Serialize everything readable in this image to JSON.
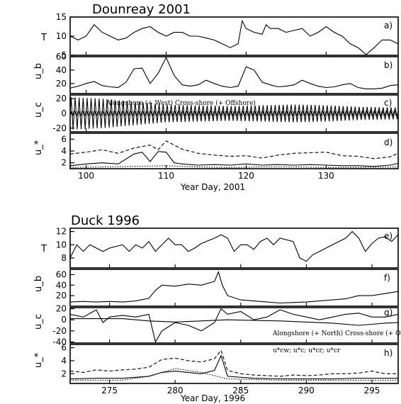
{
  "colors": {
    "ink": "#000000",
    "background": "#ffffff"
  },
  "chart_data": [
    {
      "type": "line",
      "title": "Dounreay 2001",
      "xlabel": "Year Day, 2001",
      "xlim": [
        98,
        139
      ],
      "xticks": [
        100,
        110,
        120,
        130
      ],
      "panels": [
        {
          "id": "a",
          "label": "a)",
          "ylabel": "T",
          "ylim": [
            5,
            15
          ],
          "yticks": [
            5,
            10,
            15
          ],
          "series": [
            {
              "style": "solid",
              "x": [
                98,
                99,
                100,
                101,
                102,
                103,
                104,
                105,
                106,
                107,
                108,
                109,
                110,
                111,
                112,
                113,
                114,
                115,
                116,
                117,
                118,
                119,
                119.5,
                120,
                121,
                122,
                122.5,
                123,
                124,
                125,
                126,
                127,
                128,
                129,
                130,
                131,
                132,
                133,
                134,
                135,
                136,
                137,
                138,
                139
              ],
              "values": [
                10,
                9,
                10,
                13,
                11,
                10,
                9,
                9.5,
                11,
                12,
                12.5,
                11,
                10,
                11,
                11,
                10,
                10,
                9.5,
                9,
                8,
                7,
                8,
                14,
                12,
                11,
                10.5,
                13,
                12,
                12,
                11,
                11.5,
                12,
                10,
                11,
                12.5,
                11,
                10,
                8,
                7,
                5,
                7,
                9,
                9,
                8
              ]
            }
          ]
        },
        {
          "id": "b",
          "label": "b)",
          "ylabel": "u_b",
          "ylim": [
            5,
            60
          ],
          "yticks": [
            20,
            40,
            60
          ],
          "series": [
            {
              "style": "solid",
              "x": [
                98,
                99,
                100,
                101,
                102,
                103,
                104,
                105,
                106,
                107,
                108,
                109,
                110,
                111,
                112,
                113,
                114,
                115,
                116,
                117,
                118,
                119,
                120,
                121,
                122,
                123,
                124,
                125,
                126,
                127,
                128,
                129,
                130,
                131,
                132,
                133,
                134,
                135,
                136,
                137,
                138,
                139
              ],
              "values": [
                13,
                16,
                20,
                23,
                17,
                15,
                14,
                22,
                42,
                43,
                20,
                35,
                60,
                32,
                18,
                16,
                18,
                25,
                20,
                16,
                14,
                16,
                45,
                40,
                22,
                18,
                15,
                16,
                18,
                25,
                20,
                16,
                14,
                15,
                18,
                20,
                14,
                12,
                12,
                13,
                17,
                18
              ]
            }
          ]
        },
        {
          "id": "c",
          "label": "c)",
          "ylabel": "u_c",
          "ylim": [
            -25,
            25
          ],
          "yticks": [
            -20,
            0,
            20
          ],
          "annotation": "Alongshore (+ West)    Cross-shore (+ Offshore)",
          "series": [
            {
              "name": "Alongshore (+ West)",
              "style": "oscillation",
              "x": [
                98,
                102,
                106,
                110,
                114,
                118,
                122,
                126,
                130,
                134,
                139
              ],
              "values": [
                22,
                20,
                16,
                12,
                11,
                10,
                11,
                12,
                11,
                9,
                8
              ]
            },
            {
              "name": "Cross-shore (+ Offshore)",
              "style": "oscillation",
              "x": [
                98,
                106,
                114,
                122,
                130,
                139
              ],
              "values": [
                4,
                4,
                4,
                4,
                4,
                4
              ]
            }
          ]
        },
        {
          "id": "d",
          "label": "d)",
          "ylabel": "u_*",
          "ylim": [
            1,
            7
          ],
          "yticks": [
            2,
            4,
            6
          ],
          "series": [
            {
              "style": "dashed",
              "x": [
                98,
                100,
                102,
                104,
                106,
                108,
                109,
                110,
                112,
                114,
                116,
                118,
                120,
                122,
                124,
                126,
                128,
                130,
                132,
                134,
                136,
                138,
                139
              ],
              "values": [
                3.5,
                3.8,
                4.2,
                3.6,
                4.5,
                5.0,
                4.2,
                5.7,
                4.3,
                3.6,
                3.3,
                3.1,
                3.2,
                2.8,
                3.3,
                3.6,
                3.7,
                3.8,
                3.2,
                3.1,
                2.7,
                3.0,
                3.6
              ]
            },
            {
              "style": "solid",
              "x": [
                98,
                100,
                102,
                104,
                106,
                107,
                108,
                109,
                110,
                111,
                112,
                114,
                116,
                118,
                120,
                122,
                124,
                126,
                128,
                130,
                132,
                134,
                136,
                138,
                139
              ],
              "values": [
                1.5,
                1.8,
                2.0,
                1.8,
                3.5,
                3.8,
                2.2,
                3.9,
                3.8,
                2.0,
                1.8,
                1.6,
                1.7,
                1.6,
                1.8,
                1.6,
                1.7,
                1.6,
                1.7,
                1.6,
                1.5,
                1.5,
                1.4,
                1.6,
                1.9
              ]
            },
            {
              "style": "dotted",
              "x": [
                98,
                102,
                106,
                110,
                114,
                118,
                122,
                126,
                130,
                134,
                139
              ],
              "values": [
                1.2,
                1.3,
                1.4,
                1.5,
                1.3,
                1.2,
                1.3,
                1.3,
                1.2,
                1.2,
                1.3
              ]
            }
          ]
        }
      ]
    },
    {
      "type": "line",
      "title": "Duck 1996",
      "xlabel": "Year Day, 1996",
      "xlim": [
        272,
        297
      ],
      "xticks": [
        275,
        280,
        285,
        290,
        295
      ],
      "panels": [
        {
          "id": "e",
          "label": "e)",
          "ylabel": "T",
          "ylim": [
            6.5,
            12.5
          ],
          "yticks": [
            8,
            10,
            12
          ],
          "series": [
            {
              "style": "solid",
              "x": [
                272,
                272.5,
                273,
                273.5,
                274,
                274.5,
                275,
                276,
                276.5,
                277,
                277.5,
                278,
                278.5,
                279,
                279.5,
                280,
                280.5,
                281,
                281.5,
                282,
                283,
                283.5,
                284,
                284.5,
                285,
                285.5,
                286,
                286.5,
                287,
                287.5,
                288,
                289,
                289.5,
                290,
                290.5,
                291,
                292,
                293,
                293.5,
                294,
                294.5,
                295,
                295.5,
                296,
                296.5,
                297
              ],
              "values": [
                8,
                10,
                9,
                10,
                9.5,
                9,
                9.5,
                10,
                9,
                10,
                9.5,
                10.5,
                9,
                10,
                11,
                10,
                10,
                9,
                9.5,
                10.2,
                11,
                11.5,
                11,
                9,
                10,
                10,
                9.3,
                10.5,
                11,
                10,
                11,
                10.5,
                8,
                7.5,
                8.5,
                9,
                10,
                11,
                12,
                11,
                9,
                10.2,
                11,
                11.2,
                10.5,
                11.5
              ]
            }
          ]
        },
        {
          "id": "f",
          "label": "f)",
          "ylabel": "u_b",
          "ylim": [
            0,
            70
          ],
          "yticks": [
            20,
            40,
            60
          ],
          "series": [
            {
              "style": "solid",
              "x": [
                272,
                273,
                274,
                275,
                276,
                277,
                278,
                278.5,
                279,
                280,
                281,
                282,
                283,
                283.3,
                283.6,
                284,
                285,
                286,
                287,
                288,
                289,
                290,
                291,
                292,
                293,
                294,
                295,
                296,
                297
              ],
              "values": [
                8,
                9,
                8,
                9,
                8,
                10,
                15,
                30,
                40,
                38,
                42,
                40,
                47,
                65,
                40,
                20,
                12,
                10,
                8,
                6,
                7,
                8,
                10,
                12,
                14,
                20,
                20,
                24,
                28
              ]
            }
          ]
        },
        {
          "id": "g",
          "label": "g)",
          "ylabel": "u_c",
          "ylim": [
            -42,
            22
          ],
          "yticks": [
            -40,
            -20,
            0,
            20
          ],
          "annotation": "Alongshore (+ North)    Cross-shore (+ Offshore)",
          "series": [
            {
              "name": "Alongshore (+ North)",
              "style": "solid",
              "x": [
                272,
                273,
                274,
                274.5,
                275,
                276,
                277,
                278,
                278.5,
                279,
                280,
                281,
                282,
                283,
                283.5,
                284,
                285,
                286,
                287,
                288,
                289,
                290,
                291,
                292,
                293,
                294,
                295,
                296,
                297
              ],
              "values": [
                10,
                5,
                18,
                -5,
                5,
                8,
                5,
                10,
                -40,
                -20,
                -5,
                -10,
                -20,
                -5,
                20,
                10,
                15,
                0,
                5,
                18,
                10,
                5,
                0,
                5,
                10,
                12,
                5,
                5,
                10
              ]
            },
            {
              "name": "Cross-shore (+ Offshore)",
              "style": "solid",
              "x": [
                272,
                276,
                278,
                280,
                284,
                288,
                292,
                294,
                296,
                297
              ],
              "values": [
                2,
                2,
                -2,
                -4,
                0,
                -2,
                -6,
                -10,
                -6,
                -5
              ]
            }
          ]
        },
        {
          "id": "h",
          "label": "h)",
          "ylabel": "u_*",
          "ylim": [
            0.5,
            6.5
          ],
          "yticks": [
            2,
            4,
            6
          ],
          "legend_text": "u*cw; u*c; u*cr; u*cr",
          "series": [
            {
              "style": "dashed",
              "x": [
                272,
                273,
                274,
                275,
                276,
                277,
                278,
                279,
                280,
                281,
                282,
                283,
                283.5,
                284,
                285,
                286,
                287,
                288,
                289,
                290,
                291,
                292,
                293,
                294,
                295,
                296,
                297
              ],
              "values": [
                2.4,
                2.2,
                2.6,
                2.4,
                2.6,
                2.7,
                3.0,
                4.2,
                4.4,
                4.0,
                3.8,
                4.3,
                5.6,
                2.5,
                2.0,
                1.8,
                1.7,
                1.6,
                1.8,
                1.7,
                1.8,
                2.0,
                2.0,
                2.1,
                2.4,
                2.0,
                2.0
              ]
            },
            {
              "style": "solid",
              "x": [
                272,
                274,
                276,
                278,
                279,
                280,
                281,
                282,
                283,
                283.5,
                284,
                286,
                288,
                290,
                292,
                294,
                296,
                297
              ],
              "values": [
                1.2,
                1.3,
                1.3,
                1.6,
                2.2,
                2.4,
                2.2,
                2.0,
                2.5,
                4.8,
                1.6,
                1.3,
                1.2,
                1.2,
                1.2,
                1.3,
                1.3,
                1.3
              ]
            },
            {
              "style": "dotted",
              "x": [
                272,
                276,
                278,
                280,
                282,
                284,
                288,
                292,
                297
              ],
              "values": [
                1.0,
                1.0,
                1.6,
                2.8,
                2.2,
                1.2,
                1.0,
                1.0,
                1.0
              ]
            }
          ]
        }
      ]
    }
  ]
}
